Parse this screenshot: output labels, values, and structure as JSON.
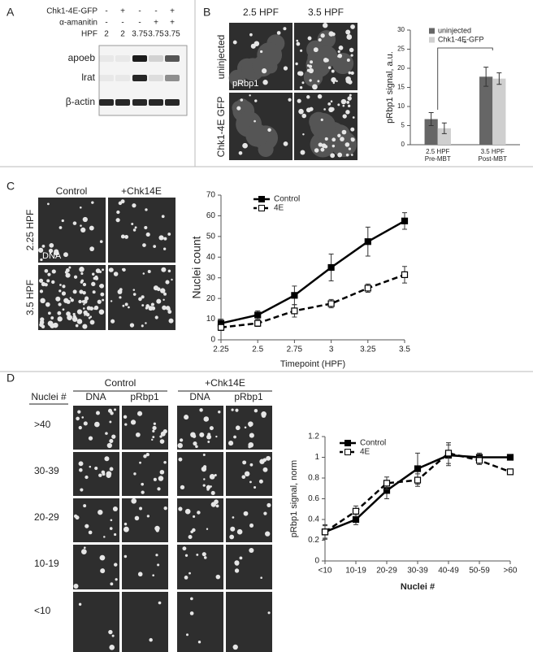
{
  "panel_a": {
    "label": "A",
    "rows": [
      {
        "label": "Chk1-4E-GFP",
        "cells": [
          "-",
          "+",
          "-",
          "-",
          "+"
        ]
      },
      {
        "label": "α-amanitin",
        "cells": [
          "-",
          "-",
          "-",
          "+",
          "+"
        ]
      },
      {
        "label": "HPF",
        "cells": [
          2,
          2,
          3.75,
          3.75,
          3.75
        ]
      }
    ],
    "bands": [
      "apoeb",
      "lrat",
      "β-actin"
    ]
  },
  "panel_b": {
    "label": "B",
    "columns": [
      "2.5 HPF",
      "3.5 HPF"
    ],
    "rows": [
      "uninjected",
      "Chk1-4E GFP"
    ],
    "stain": "pRbp1"
  },
  "panel_c": {
    "label": "C",
    "columns": [
      "Control",
      "+Chk14E"
    ],
    "rows": [
      "2.25 HPF",
      "3.5 HPF"
    ],
    "stain": "DNA"
  },
  "panel_d": {
    "label": "D",
    "groups": [
      "Control",
      "+Chk14E"
    ],
    "row_header": "Nuclei #",
    "columns": [
      "DNA",
      "pRbp1",
      "DNA",
      "pRbp1"
    ],
    "rows": [
      ">40",
      "30-39",
      "20-29",
      "10-19",
      "<10"
    ]
  },
  "chart_data": [
    {
      "type": "bar",
      "categories": [
        "2.5 HPF",
        "3.5 HPF"
      ],
      "category_sublabels": [
        "Pre-MBT",
        "Post-MBT"
      ],
      "series": [
        {
          "name": "uninjected",
          "color": "#666666",
          "values": [
            6.7,
            17.8
          ],
          "errors": [
            1.7,
            2.5
          ]
        },
        {
          "name": "Chk1-4E-GFP",
          "color": "#cfcfcf",
          "values": [
            4.3,
            17.3
          ],
          "errors": [
            1.4,
            1.5
          ]
        }
      ],
      "ylabel": "pRbp1 signal, a.u.",
      "ylim": [
        0,
        30
      ],
      "yticks": [
        0,
        5,
        10,
        15,
        20,
        25,
        30
      ],
      "annotation": "*"
    },
    {
      "type": "line",
      "x": [
        2.25,
        2.5,
        2.75,
        3,
        3.25,
        3.5
      ],
      "series": [
        {
          "name": "Control",
          "color": "#000000",
          "marker": "filled-square",
          "dashed": false,
          "values": [
            8,
            12,
            21.5,
            35,
            47.5,
            57.5
          ],
          "errors": [
            2,
            2,
            4.5,
            6.5,
            7,
            4
          ]
        },
        {
          "name": "4E",
          "color": "#000000",
          "marker": "open-square",
          "dashed": true,
          "values": [
            6,
            8,
            14,
            17.5,
            25,
            31.5
          ],
          "errors": [
            1.5,
            1.5,
            3,
            2,
            2,
            4
          ]
        }
      ],
      "xlabel": "Timepoint (HPF)",
      "ylabel": "Nuclei count",
      "xlim": [
        2.25,
        3.5
      ],
      "xticks": [
        2.25,
        2.5,
        2.75,
        3,
        3.25,
        3.5
      ],
      "ylim": [
        0,
        70
      ],
      "yticks": [
        0,
        10,
        20,
        30,
        40,
        50,
        60,
        70
      ]
    },
    {
      "type": "line",
      "categories": [
        "<10",
        "10-19",
        "20-29",
        "30-39",
        "40-49",
        "50-59",
        ">60"
      ],
      "series": [
        {
          "name": "Control",
          "color": "#000000",
          "marker": "filled-square",
          "dashed": false,
          "values": [
            0.28,
            0.4,
            0.68,
            0.89,
            1.02,
            1.0,
            1.0
          ],
          "errors": [
            0.06,
            0.05,
            0.08,
            0.15,
            0.1,
            0.04,
            0.02
          ]
        },
        {
          "name": "4E",
          "color": "#000000",
          "marker": "open-square",
          "dashed": true,
          "values": [
            0.28,
            0.48,
            0.75,
            0.78,
            1.04,
            0.97,
            0.86
          ],
          "errors": [
            0.07,
            0.05,
            0.06,
            0.06,
            0.1,
            0.04,
            0.02
          ]
        }
      ],
      "xlabel": "Nuclei #",
      "ylabel": "pRbp1 signal, norm",
      "ylim": [
        0,
        1.2
      ],
      "yticks": [
        0,
        0.2,
        0.4,
        0.6,
        0.8,
        1,
        1.2
      ]
    }
  ]
}
